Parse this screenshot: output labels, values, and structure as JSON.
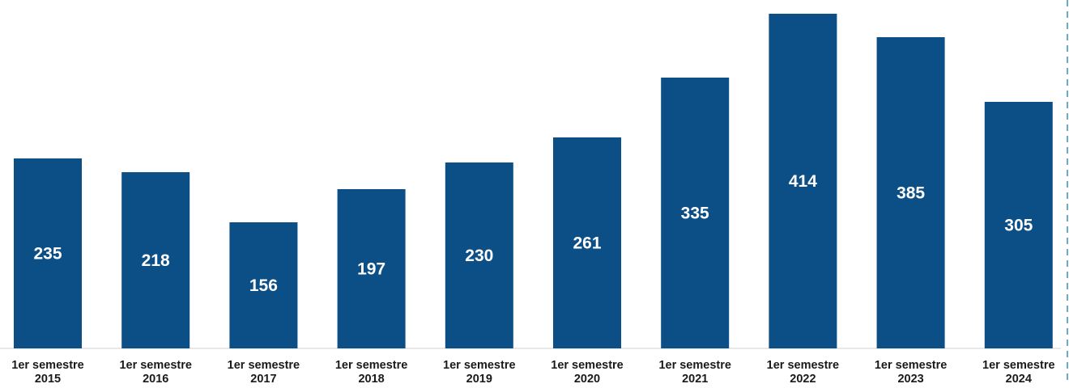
{
  "chart_data": {
    "type": "bar",
    "categories": [
      [
        "1er semestre",
        "2015"
      ],
      [
        "1er semestre",
        "2016"
      ],
      [
        "1er semestre",
        "2017"
      ],
      [
        "1er semestre",
        "2018"
      ],
      [
        "1er semestre",
        "2019"
      ],
      [
        "1er semestre",
        "2020"
      ],
      [
        "1er semestre",
        "2021"
      ],
      [
        "1er semestre",
        "2022"
      ],
      [
        "1er semestre",
        "2023"
      ],
      [
        "1er semestre",
        "2024"
      ]
    ],
    "values": [
      235,
      218,
      156,
      197,
      230,
      261,
      335,
      414,
      385,
      305
    ],
    "data_labels": [
      "235",
      "218",
      "156",
      "197",
      "230",
      "261",
      "335",
      "414",
      "385",
      "305"
    ],
    "bar_color": "#0b4f86",
    "label_color": "#ffffff",
    "ylim": [
      0,
      420
    ],
    "grid": false,
    "legend": "none"
  }
}
